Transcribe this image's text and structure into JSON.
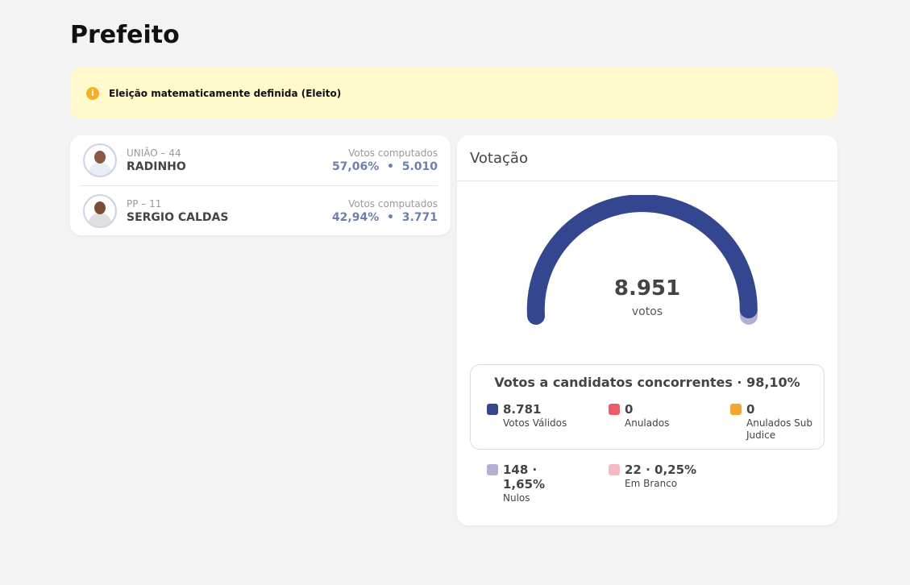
{
  "page": {
    "title": "Prefeito"
  },
  "alert": {
    "text": "Eleição matematicamente definida (Eleito)",
    "icon": "info-icon",
    "icon_glyph": "i"
  },
  "candidates": [
    {
      "party": "UNIÃO – 44",
      "name": "RADINHO",
      "votes_label": "Votos computados",
      "percent": "57,06%",
      "separator": "•",
      "votes": "5.010"
    },
    {
      "party": "PP – 11",
      "name": "SERGIO CALDAS",
      "votes_label": "Votos computados",
      "percent": "42,94%",
      "separator": "•",
      "votes": "3.771"
    }
  ],
  "votacao": {
    "title": "Votação",
    "total": "8.951",
    "total_unit": "votos",
    "gauge": {
      "valid_fraction": 0.981,
      "other_fraction": 0.019
    },
    "concorrentes": {
      "title": "Votos a candidatos concorrentes · 98,10%",
      "items": [
        {
          "value": "8.781",
          "label": "Votos Válidos",
          "color": "#34468f"
        },
        {
          "value": "0",
          "label": "Anulados",
          "color": "#ef5a6a"
        },
        {
          "value": "0",
          "label": "Anulados Sub Judice",
          "color": "#f5a630"
        }
      ]
    },
    "others": [
      {
        "value": "148 · 1,65%",
        "label": "Nulos",
        "color": "#b4b0d4"
      },
      {
        "value": "22 · 0,25%",
        "label": "Em Branco",
        "color": "#f7b9c4"
      }
    ]
  },
  "colors": {
    "gauge_valid": "#34468f",
    "gauge_other": "#b4b0d4"
  }
}
